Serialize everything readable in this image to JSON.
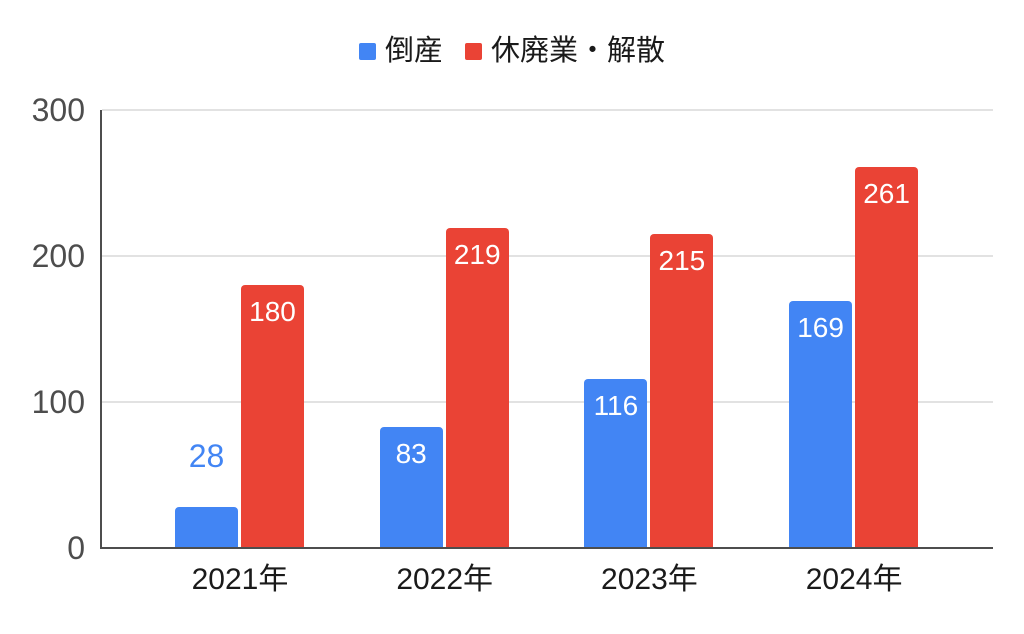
{
  "chart_data": {
    "type": "bar",
    "categories": [
      "2021年",
      "2022年",
      "2023年",
      "2024年"
    ],
    "series": [
      {
        "name": "倒産",
        "color": "#4285F4",
        "values": [
          28,
          83,
          116,
          169
        ]
      },
      {
        "name": "休廃業・解散",
        "color": "#EA4335",
        "values": [
          180,
          219,
          215,
          261
        ]
      }
    ],
    "title": "",
    "xlabel": "",
    "ylabel": "",
    "ylim": [
      0,
      300
    ],
    "yticks": [
      0,
      100,
      200,
      300
    ],
    "grid": true,
    "legend_position": "top",
    "colors": {
      "background": "#ffffff",
      "gridline": "#e2e2e2",
      "axis": "#4d4d4d",
      "ytick_label": "#4d4d4d",
      "xtick_label": "#1a1a1a",
      "bar_label_inside": "#ffffff"
    },
    "label_placement_note": "value labels white inside bar top; label above bar in series color when bar too short"
  }
}
